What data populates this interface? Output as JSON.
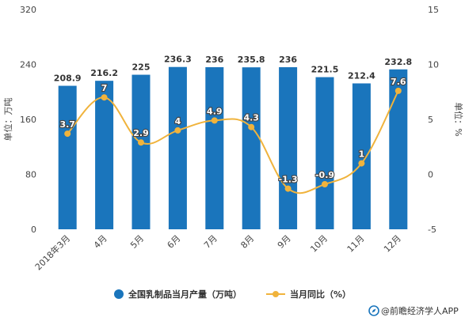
{
  "chart_data": {
    "type": "bar",
    "categories": [
      "2018年3月",
      "4月",
      "5月",
      "6月",
      "7月",
      "8月",
      "9月",
      "10月",
      "11月",
      "12月"
    ],
    "series": [
      {
        "name": "全国乳制品当月产量（万吨）",
        "type": "bar",
        "axis": "left",
        "color": "#1a75bc",
        "values": [
          208.9,
          216.2,
          225,
          236.3,
          236,
          235.8,
          236,
          221.5,
          212.4,
          232.8
        ]
      },
      {
        "name": "当月同比（%）",
        "type": "line",
        "axis": "right",
        "color": "#f0b33c",
        "values": [
          3.7,
          7,
          2.9,
          4,
          4.9,
          4.3,
          -1.3,
          -0.9,
          1,
          7.6
        ]
      }
    ],
    "ylabel": "单位：万吨",
    "ylabel_right": "单位：%",
    "ylim": [
      0,
      320
    ],
    "yticks": [
      0,
      80,
      160,
      240,
      320
    ],
    "ylim_right": [
      -5,
      15
    ],
    "yticks_right": [
      -5,
      0,
      5,
      10,
      15
    ],
    "grid": false,
    "legend_position": "bottom"
  },
  "source": {
    "icon": "compass-logo-icon",
    "text": "@前瞻经济学人APP"
  }
}
